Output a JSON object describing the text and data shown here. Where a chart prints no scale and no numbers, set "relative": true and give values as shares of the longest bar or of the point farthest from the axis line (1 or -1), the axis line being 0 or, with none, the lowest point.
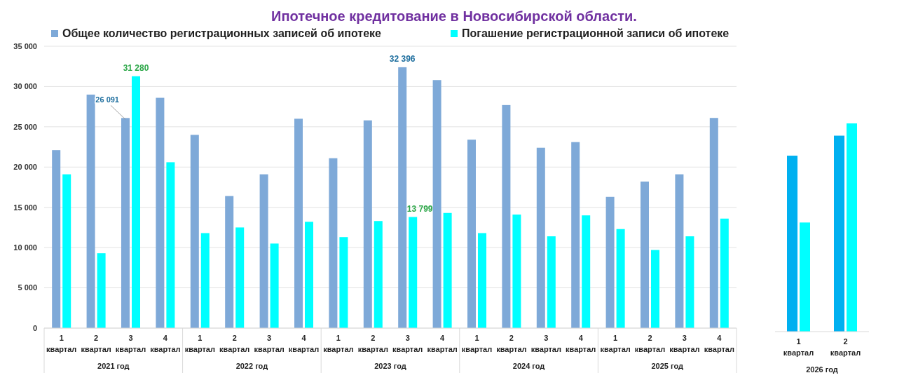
{
  "chart_data": [
    {
      "type": "bar",
      "title": "Ипотечное кредитование в Новосибирской области.",
      "categories": [
        "1 квартал",
        "2 квартал",
        "3 квартал",
        "4 квартал",
        "1 квартал",
        "2 квартал",
        "3 квартал",
        "4 квартал",
        "1 квартал",
        "2 квартал",
        "3 квартал",
        "4 квартал",
        "1 квартал",
        "2 квартал",
        "3 квартал",
        "4 квартал",
        "1 квартал",
        "2 квартал",
        "3 квартал",
        "4 квартал"
      ],
      "series": [
        {
          "name": "Общее количество регистрационных записей об ипотеке",
          "color": "#7ea9d8",
          "values": [
            22100,
            29000,
            26091,
            28600,
            24000,
            16400,
            19100,
            26000,
            21100,
            25800,
            32396,
            30800,
            23400,
            27700,
            22400,
            23100,
            16300,
            18200,
            19100,
            26100
          ],
          "value_labels": [
            null,
            null,
            "26 091",
            null,
            null,
            null,
            null,
            null,
            null,
            null,
            "32 396",
            null,
            null,
            null,
            null,
            null,
            null,
            null,
            null,
            null
          ]
        },
        {
          "name": "Погашение регистрационной записи об ипотеке",
          "color": "#00ffff",
          "values": [
            19100,
            9300,
            31280,
            20600,
            11800,
            12500,
            10500,
            13200,
            11300,
            13300,
            13799,
            14300,
            11800,
            14100,
            11400,
            14000,
            12300,
            9700,
            11400,
            13600
          ],
          "value_labels": [
            null,
            null,
            "31 280",
            null,
            null,
            null,
            null,
            null,
            null,
            null,
            "13 799",
            null,
            null,
            null,
            null,
            null,
            null,
            null,
            null,
            null
          ]
        }
      ],
      "ylim": [
        0,
        35000
      ],
      "yticks": [
        0,
        {
          "value": 5000,
          "label": "5 000"
        },
        {
          "value": 10000,
          "label": "10 000"
        },
        {
          "value": 15000,
          "label": "15 000"
        },
        {
          "value": 20000,
          "label": "20 000"
        },
        {
          "value": 25000,
          "label": "25 000"
        },
        {
          "value": 30000,
          "label": "30 000"
        },
        {
          "value": 35000,
          "label": "35 000"
        }
      ],
      "grid": "y",
      "legend": "top",
      "annotations": [
        "2021 год",
        "2022 год",
        "2023 год",
        "2024 год",
        "2025 год"
      ]
    },
    {
      "type": "bar",
      "relative": true,
      "categories": [
        "1 квартал",
        "2 квартал"
      ],
      "series": [
        {
          "color": "#00b0f0",
          "values": [
            0.845,
            0.941
          ]
        },
        {
          "color": "#00ffff",
          "values": [
            0.524,
            1
          ]
        }
      ],
      "annotations": [
        "2026 год"
      ]
    }
  ]
}
